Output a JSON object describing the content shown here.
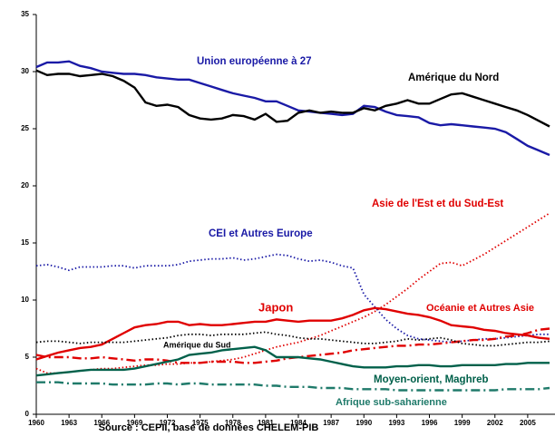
{
  "chart_data": {
    "type": "line",
    "source": "Source : CEPII, base de données CHELEM-PIB",
    "x": [
      1960,
      1961,
      1962,
      1963,
      1964,
      1965,
      1966,
      1967,
      1968,
      1969,
      1970,
      1971,
      1972,
      1973,
      1974,
      1975,
      1976,
      1977,
      1978,
      1979,
      1980,
      1981,
      1982,
      1983,
      1984,
      1985,
      1986,
      1987,
      1988,
      1989,
      1990,
      1991,
      1992,
      1993,
      1994,
      1995,
      1996,
      1997,
      1998,
      1999,
      2000,
      2001,
      2002,
      2003,
      2004,
      2005,
      2006,
      2007
    ],
    "xlim": [
      1960,
      2007.5
    ],
    "xticks": [
      1960,
      1963,
      1966,
      1969,
      1972,
      1975,
      1978,
      1981,
      1984,
      1987,
      1990,
      1993,
      1996,
      1999,
      2002,
      2005
    ],
    "ylim": [
      0,
      35
    ],
    "yticks": [
      0,
      5,
      10,
      15,
      20,
      25,
      30,
      35
    ],
    "grid": false,
    "series": [
      {
        "name": "Union européenne à 27",
        "color": "#1a1aa6",
        "dash": "solid",
        "values": [
          30.4,
          30.8,
          30.8,
          30.9,
          30.5,
          30.3,
          30.0,
          29.9,
          29.8,
          29.8,
          29.7,
          29.5,
          29.4,
          29.3,
          29.3,
          29.0,
          28.7,
          28.4,
          28.1,
          27.9,
          27.7,
          27.4,
          27.4,
          27.0,
          26.6,
          26.5,
          26.4,
          26.3,
          26.2,
          26.3,
          27.0,
          26.9,
          26.5,
          26.2,
          26.1,
          26.0,
          25.5,
          25.3,
          25.4,
          25.3,
          25.2,
          25.1,
          25.0,
          24.7,
          24.1,
          23.5,
          23.1,
          22.7
        ]
      },
      {
        "name": "Amérique du Nord",
        "color": "#000000",
        "dash": "solid",
        "values": [
          30.1,
          29.7,
          29.8,
          29.8,
          29.6,
          29.7,
          29.8,
          29.6,
          29.2,
          28.6,
          27.3,
          27.0,
          27.1,
          26.9,
          26.2,
          25.9,
          25.8,
          25.9,
          26.2,
          26.1,
          25.8,
          26.3,
          25.6,
          25.7,
          26.4,
          26.6,
          26.4,
          26.5,
          26.4,
          26.4,
          26.8,
          26.6,
          27.0,
          27.2,
          27.5,
          27.2,
          27.2,
          27.6,
          28.0,
          28.1,
          27.8,
          27.5,
          27.2,
          26.9,
          26.6,
          26.2,
          25.7,
          25.2
        ]
      },
      {
        "name": "Asie de l'Est et du Sud-Est",
        "color": "#e00000",
        "dash": "dotted",
        "values": [
          4.0,
          3.6,
          3.6,
          3.7,
          3.8,
          3.9,
          4.0,
          4.0,
          4.1,
          4.2,
          4.3,
          4.3,
          4.4,
          4.4,
          4.5,
          4.5,
          4.6,
          4.7,
          4.8,
          5.0,
          5.3,
          5.6,
          5.9,
          6.1,
          6.3,
          6.6,
          6.9,
          7.3,
          7.7,
          8.1,
          8.5,
          9.0,
          9.6,
          10.3,
          11.0,
          11.8,
          12.5,
          13.2,
          13.3,
          13.0,
          13.5,
          14.0,
          14.6,
          15.2,
          15.8,
          16.4,
          17.0,
          17.6
        ]
      },
      {
        "name": "CEI et Autres Europe",
        "color": "#1a1aa6",
        "dash": "dotted",
        "values": [
          13.0,
          13.1,
          12.9,
          12.6,
          12.9,
          12.9,
          12.9,
          13.0,
          13.0,
          12.8,
          13.0,
          13.0,
          13.0,
          13.1,
          13.4,
          13.5,
          13.6,
          13.6,
          13.7,
          13.5,
          13.6,
          13.8,
          14.0,
          13.9,
          13.6,
          13.4,
          13.5,
          13.3,
          13.0,
          12.8,
          10.5,
          9.4,
          8.3,
          7.5,
          6.9,
          6.6,
          6.5,
          6.4,
          6.3,
          6.4,
          6.5,
          6.6,
          6.6,
          6.7,
          6.8,
          6.9,
          7.0,
          7.0
        ]
      },
      {
        "name": "Japon",
        "color": "#e00000",
        "dash": "solid",
        "values": [
          4.8,
          5.1,
          5.4,
          5.6,
          5.8,
          5.9,
          6.1,
          6.6,
          7.1,
          7.6,
          7.8,
          7.9,
          8.1,
          8.1,
          7.8,
          7.9,
          7.8,
          7.8,
          7.9,
          8.0,
          8.1,
          8.1,
          8.3,
          8.2,
          8.1,
          8.2,
          8.2,
          8.2,
          8.4,
          8.7,
          9.1,
          9.3,
          9.2,
          9.0,
          8.8,
          8.7,
          8.5,
          8.2,
          7.8,
          7.7,
          7.6,
          7.4,
          7.3,
          7.1,
          7.0,
          6.9,
          6.7,
          6.6
        ]
      },
      {
        "name": "Océanie et Autres Asie",
        "color": "#e00000",
        "dash": "dashdot",
        "values": [
          5.2,
          5.0,
          5.0,
          5.0,
          4.9,
          4.9,
          5.0,
          4.9,
          4.8,
          4.7,
          4.8,
          4.8,
          4.7,
          4.5,
          4.5,
          4.5,
          4.6,
          4.6,
          4.6,
          4.5,
          4.5,
          4.6,
          4.7,
          4.9,
          5.0,
          5.1,
          5.2,
          5.3,
          5.4,
          5.6,
          5.7,
          5.8,
          5.9,
          6.0,
          6.0,
          6.1,
          6.1,
          6.2,
          6.3,
          6.4,
          6.5,
          6.5,
          6.6,
          6.8,
          6.9,
          7.1,
          7.4,
          7.5
        ]
      },
      {
        "name": "Amérique du Sud",
        "color": "#000000",
        "dash": "dotted",
        "values": [
          6.3,
          6.4,
          6.4,
          6.3,
          6.2,
          6.3,
          6.3,
          6.3,
          6.3,
          6.4,
          6.5,
          6.6,
          6.7,
          6.9,
          7.0,
          7.0,
          6.9,
          7.0,
          7.0,
          7.0,
          7.1,
          7.2,
          7.0,
          6.9,
          6.7,
          6.6,
          6.6,
          6.5,
          6.4,
          6.3,
          6.2,
          6.2,
          6.3,
          6.4,
          6.6,
          6.5,
          6.6,
          6.7,
          6.5,
          6.2,
          6.1,
          6.0,
          6.0,
          6.1,
          6.2,
          6.3,
          6.3,
          6.4
        ]
      },
      {
        "name": "Moyen-orient, Maghreb",
        "color": "#00604a",
        "dash": "solid",
        "values": [
          3.4,
          3.5,
          3.6,
          3.7,
          3.8,
          3.9,
          3.9,
          3.9,
          3.9,
          4.0,
          4.2,
          4.4,
          4.6,
          4.8,
          5.2,
          5.3,
          5.4,
          5.6,
          5.7,
          5.8,
          5.9,
          5.6,
          5.0,
          5.0,
          5.0,
          4.9,
          4.8,
          4.6,
          4.4,
          4.2,
          4.1,
          4.1,
          4.1,
          4.2,
          4.2,
          4.3,
          4.3,
          4.2,
          4.2,
          4.3,
          4.3,
          4.3,
          4.3,
          4.4,
          4.4,
          4.5,
          4.5,
          4.5
        ]
      },
      {
        "name": "Afrique sub-saharienne",
        "color": "#1f7a6a",
        "dash": "dashdot",
        "values": [
          2.8,
          2.8,
          2.8,
          2.7,
          2.7,
          2.7,
          2.7,
          2.6,
          2.6,
          2.6,
          2.6,
          2.7,
          2.7,
          2.6,
          2.7,
          2.7,
          2.6,
          2.6,
          2.6,
          2.6,
          2.6,
          2.5,
          2.5,
          2.4,
          2.4,
          2.4,
          2.3,
          2.3,
          2.3,
          2.2,
          2.2,
          2.2,
          2.2,
          2.1,
          2.1,
          2.1,
          2.1,
          2.1,
          2.1,
          2.1,
          2.1,
          2.1,
          2.1,
          2.2,
          2.2,
          2.2,
          2.2,
          2.3
        ]
      }
    ]
  }
}
